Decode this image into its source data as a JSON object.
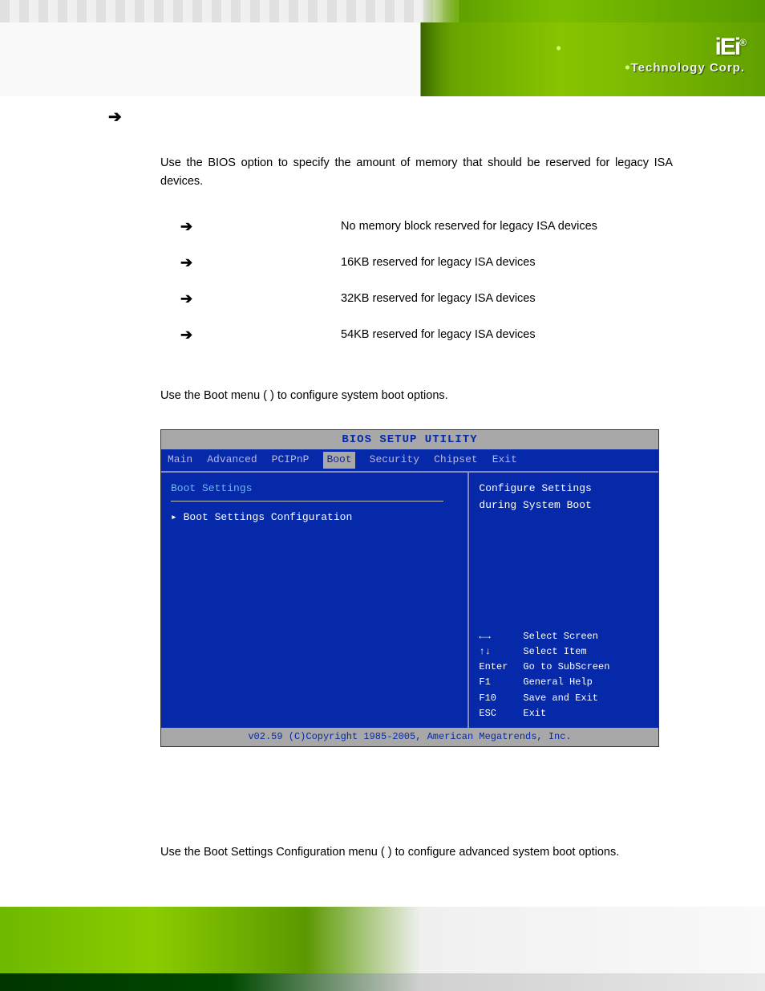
{
  "logo": {
    "main": "iEi",
    "reg": "®",
    "sub": "Technology Corp."
  },
  "section_arrow": "➔",
  "intro": {
    "pre": "Use the ",
    "post": " BIOS option to specify the amount of memory that should be reserved for legacy ISA devices."
  },
  "options": [
    {
      "desc": "No memory block reserved for legacy ISA devices"
    },
    {
      "desc": "16KB reserved for legacy ISA devices"
    },
    {
      "desc": "32KB reserved for legacy ISA devices"
    },
    {
      "desc": "54KB reserved for legacy ISA devices"
    }
  ],
  "boot_intro": {
    "pre": "Use the Boot menu (",
    "post": ") to configure system boot options."
  },
  "bios": {
    "title": "BIOS SETUP UTILITY",
    "tabs": [
      "Main",
      "Advanced",
      "PCIPnP",
      "Boot",
      "Security",
      "Chipset",
      "Exit"
    ],
    "active_tab": "Boot",
    "section": "Boot Settings",
    "item": "▸ Boot Settings Configuration",
    "help_top1": "Configure Settings",
    "help_top2": "during System Boot",
    "nav": [
      {
        "key": "←→",
        "label": "Select Screen"
      },
      {
        "key": "↑↓",
        "label": "Select Item"
      },
      {
        "key": "Enter",
        "label": "Go to SubScreen"
      },
      {
        "key": "F1",
        "label": "General Help"
      },
      {
        "key": "F10",
        "label": "Save and Exit"
      },
      {
        "key": "ESC",
        "label": "Exit"
      }
    ],
    "footer": "v02.59 (C)Copyright 1985-2005, American Megatrends, Inc."
  },
  "boot_cfg_intro": {
    "pre": "Use the Boot Settings Configuration menu (",
    "post": ") to configure advanced system boot options."
  },
  "colors": {
    "bios_bg": "#0529a8",
    "bios_gray": "#a8a8a8",
    "bios_cyan": "#6eb8f0",
    "banner_green": "#6aa800"
  }
}
